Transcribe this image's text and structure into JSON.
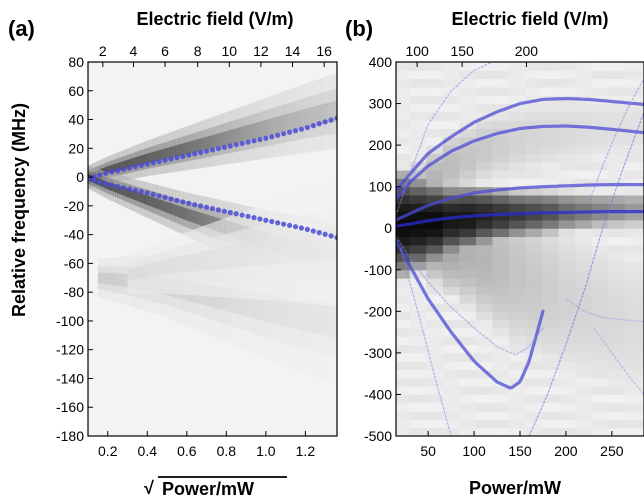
{
  "chart_data": [
    {
      "panel_label": "(a)",
      "type": "heatmap",
      "xlabel_bottom": "Power/mW",
      "xlabel_bottom_prefix": "√",
      "xlabel_top": "Electric field (V/m)",
      "ylabel": "Relative frequency (MHz)",
      "xlim": [
        0.1,
        1.36
      ],
      "ylim": [
        -180,
        80
      ],
      "x_ticks": [
        0.2,
        0.4,
        0.6,
        0.8,
        1.0,
        1.2
      ],
      "x_tick_labels": [
        "0.2",
        "0.4",
        "0.6",
        "0.8",
        "1.0",
        "1.2"
      ],
      "y_ticks": [
        80,
        60,
        40,
        20,
        0,
        -20,
        -40,
        -60,
        -80,
        -100,
        -120,
        -140,
        -160,
        -180
      ],
      "y_tick_labels": [
        "80",
        "60",
        "40",
        "20",
        "0",
        "-20",
        "-40",
        "-60",
        "-80",
        "-100",
        "-120",
        "-140",
        "-160",
        "-180"
      ],
      "top_ticks": [
        2,
        4,
        6,
        8,
        10,
        12,
        14,
        16
      ],
      "top_tick_labels": [
        "2",
        "4",
        "6",
        "8",
        "10",
        "12",
        "14",
        "16"
      ],
      "top_tick_positions": [
        0.175,
        0.33,
        0.49,
        0.655,
        0.815,
        0.975,
        1.135,
        1.295
      ],
      "heatmap_branches": [
        {
          "x": [
            0.1,
            0.2,
            0.4,
            0.6,
            0.8,
            1.0,
            1.2,
            1.36
          ],
          "y": [
            0,
            5,
            13,
            20,
            27,
            34,
            41,
            46
          ],
          "darkness": [
            0.95,
            0.9,
            0.85,
            0.75,
            0.6,
            0.45,
            0.35,
            0.3
          ],
          "width": 6
        },
        {
          "x": [
            0.1,
            0.2,
            0.4,
            0.6,
            0.8,
            1.0,
            1.2,
            1.36
          ],
          "y": [
            0,
            -6,
            -16,
            -26,
            -35,
            -44,
            -52,
            -58
          ],
          "darkness": [
            0.95,
            0.9,
            0.85,
            0.75,
            0.6,
            0.45,
            0.35,
            0.3
          ],
          "width": 6
        },
        {
          "x": [
            0.15,
            0.3,
            0.5,
            0.7,
            0.9,
            1.1,
            1.36
          ],
          "y": [
            -70,
            -72,
            -76,
            -82,
            -88,
            -94,
            -100
          ],
          "darkness": [
            0.25,
            0.22,
            0.2,
            0.18,
            0.15,
            0.12,
            0.1
          ],
          "width": 10
        },
        {
          "x": [
            0.3,
            0.5,
            0.7,
            0.9,
            1.1,
            1.36
          ],
          "y": [
            -68,
            -62,
            -58,
            -54,
            -50,
            -46
          ],
          "darkness": [
            0.15,
            0.13,
            0.12,
            0.1,
            0.08,
            0.07
          ],
          "width": 10
        }
      ],
      "series": [
        {
          "x": [
            0.1,
            0.2,
            0.4,
            0.6,
            0.8,
            1.0,
            1.2,
            1.36
          ],
          "y": [
            -1,
            3,
            9,
            15,
            21,
            27,
            34,
            41
          ],
          "color": "#4b4bd6",
          "style": "dots"
        },
        {
          "x": [
            0.1,
            0.2,
            0.4,
            0.6,
            0.8,
            1.0,
            1.2,
            1.36
          ],
          "y": [
            -1,
            -5,
            -11,
            -18,
            -24,
            -30,
            -36,
            -42
          ],
          "color": "#4b4bd6",
          "style": "dots"
        }
      ]
    },
    {
      "panel_label": "(b)",
      "type": "heatmap",
      "xlabel_bottom": "Power/mW",
      "xlabel_top": "Electric field (V/m)",
      "ylabel": "",
      "xlim": [
        15,
        285
      ],
      "ylim": [
        -500,
        400
      ],
      "x_ticks": [
        50,
        100,
        150,
        200,
        250
      ],
      "x_tick_labels": [
        "50",
        "100",
        "150",
        "200",
        "250"
      ],
      "y_ticks": [
        400,
        300,
        200,
        100,
        0,
        -100,
        -200,
        -300,
        -400,
        -500
      ],
      "y_tick_labels": [
        "400",
        "300",
        "200",
        "100",
        "0",
        "-100",
        "-200",
        "-300",
        "-400",
        "-500"
      ],
      "top_ticks": [
        100,
        150,
        200
      ],
      "top_tick_labels": [
        "100",
        "150",
        "200"
      ],
      "top_tick_positions": [
        38,
        87,
        157
      ],
      "heatmap_columns": {
        "x_edges": [
          15,
          30,
          48,
          66,
          84,
          102,
          120,
          138,
          156,
          174,
          192,
          210,
          228,
          246,
          264,
          285
        ],
        "bands": [
          {
            "center": [
              10,
              12,
              15,
              20,
              25,
              30,
              32,
              34,
              36,
              38,
              40,
              42,
              44,
              45,
              46
            ],
            "halfwidth": [
              90,
              80,
              70,
              60,
              55,
              50,
              45,
              40,
              38,
              36,
              34,
              32,
              30,
              30,
              30
            ],
            "darkness": [
              1.0,
              1.0,
              1.0,
              0.95,
              0.95,
              0.9,
              0.85,
              0.8,
              0.75,
              0.7,
              0.6,
              0.55,
              0.5,
              0.45,
              0.4
            ]
          },
          {
            "center": [
              0,
              -10,
              -20,
              -35,
              -50,
              -70,
              -90,
              -110,
              -130,
              -150,
              -170,
              -185,
              -200,
              -215,
              -230
            ],
            "halfwidth": [
              60,
              70,
              80,
              90,
              100,
              110,
              120,
              130,
              130,
              130,
              130,
              130,
              130,
              130,
              130
            ],
            "darkness": [
              0.5,
              0.45,
              0.4,
              0.35,
              0.3,
              0.28,
              0.25,
              0.22,
              0.2,
              0.18,
              0.16,
              0.15,
              0.14,
              0.13,
              0.12
            ]
          },
          {
            "center": [
              60,
              90,
              120,
              150,
              170,
              190,
              200,
              210,
              220,
              225,
              230,
              235,
              240,
              240,
              240
            ],
            "halfwidth": [
              40,
              50,
              55,
              60,
              60,
              60,
              60,
              60,
              60,
              60,
              60,
              60,
              60,
              60,
              60
            ],
            "darkness": [
              0.3,
              0.3,
              0.28,
              0.25,
              0.22,
              0.2,
              0.18,
              0.16,
              0.15,
              0.14,
              0.13,
              0.12,
              0.11,
              0.1,
              0.1
            ]
          }
        ]
      },
      "series": [
        {
          "x": [
            15,
            30,
            50,
            75,
            100,
            125,
            150,
            175,
            200,
            225,
            250,
            285
          ],
          "y": [
            90,
            130,
            180,
            220,
            255,
            280,
            300,
            310,
            312,
            310,
            305,
            298
          ],
          "color": "#4b4bd6",
          "style": "line"
        },
        {
          "x": [
            15,
            30,
            50,
            75,
            100,
            125,
            150,
            175,
            200,
            225,
            250,
            285
          ],
          "y": [
            70,
            110,
            150,
            185,
            210,
            228,
            240,
            245,
            246,
            243,
            238,
            230
          ],
          "color": "#4b4bd6",
          "style": "line"
        },
        {
          "x": [
            15,
            30,
            50,
            75,
            100,
            125,
            150,
            175,
            200,
            225,
            250,
            285
          ],
          "y": [
            20,
            35,
            55,
            72,
            85,
            92,
            97,
            100,
            102,
            104,
            105,
            105
          ],
          "color": "#4b4bd6",
          "style": "line"
        },
        {
          "x": [
            15,
            30,
            50,
            75,
            100,
            125,
            150,
            175,
            200,
            225,
            250,
            285
          ],
          "y": [
            5,
            10,
            18,
            25,
            30,
            33,
            35,
            37,
            38,
            39,
            40,
            40
          ],
          "color": "#2a2ad8",
          "style": "line"
        },
        {
          "x": [
            15,
            30,
            50,
            75,
            100,
            125,
            140,
            150,
            160,
            175
          ],
          "y": [
            -30,
            -90,
            -170,
            -250,
            -320,
            -370,
            -385,
            -370,
            -320,
            -200
          ],
          "color": "#4b4bd6",
          "style": "line"
        },
        {
          "x": [
            15,
            30,
            50,
            75,
            100,
            125,
            145,
            160,
            175
          ],
          "y": [
            -20,
            -70,
            -130,
            -190,
            -240,
            -285,
            -305,
            -285,
            -240
          ],
          "color": "#8a8ae0",
          "style": "thin"
        },
        {
          "x": [
            20,
            40,
            60,
            75
          ],
          "y": [
            -50,
            -210,
            -380,
            -500
          ],
          "color": "#8a8ae0",
          "style": "thin"
        },
        {
          "x": [
            15,
            30,
            50,
            75,
            100,
            120
          ],
          "y": [
            30,
            130,
            250,
            330,
            380,
            400
          ],
          "color": "#8a8ae0",
          "style": "thin"
        },
        {
          "x": [
            160,
            180,
            200,
            220,
            240,
            260,
            285
          ],
          "y": [
            -500,
            -400,
            -280,
            -150,
            0,
            130,
            280
          ],
          "color": "#6a6ae0",
          "style": "thin"
        },
        {
          "x": [
            225,
            240,
            255,
            270,
            285
          ],
          "y": [
            60,
            150,
            230,
            300,
            360
          ],
          "color": "#8a8ae0",
          "style": "thin"
        },
        {
          "x": [
            200,
            220,
            240,
            260,
            285
          ],
          "y": [
            -170,
            -200,
            -215,
            -220,
            -225
          ],
          "color": "#a0a0e8",
          "style": "thin"
        },
        {
          "x": [
            230,
            250,
            270,
            285
          ],
          "y": [
            -240,
            -300,
            -360,
            -400
          ],
          "color": "#a0a0e8",
          "style": "thin"
        }
      ]
    }
  ]
}
